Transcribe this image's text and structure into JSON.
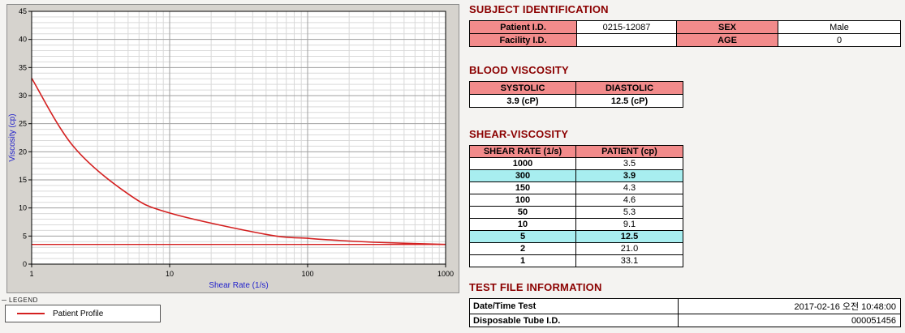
{
  "report": {
    "subject": {
      "title": "SUBJECT IDENTIFICATION",
      "rows": [
        {
          "label1": "Patient I.D.",
          "value1": "0215-12087",
          "label2": "SEX",
          "value2": "Male"
        },
        {
          "label1": "Facility I.D.",
          "value1": "",
          "label2": "AGE",
          "value2": "0"
        }
      ]
    },
    "blood_viscosity": {
      "title": "BLOOD VISCOSITY",
      "headers": [
        "SYSTOLIC",
        "DIASTOLIC"
      ],
      "values": [
        "3.9 (cP)",
        "12.5 (cP)"
      ]
    },
    "shear_viscosity": {
      "title": "SHEAR-VISCOSITY",
      "headers": [
        "SHEAR RATE (1/s)",
        "PATIENT (cp)"
      ],
      "rows": [
        {
          "rate": "1000",
          "value": "3.5",
          "highlight": false
        },
        {
          "rate": "300",
          "value": "3.9",
          "highlight": true
        },
        {
          "rate": "150",
          "value": "4.3",
          "highlight": false
        },
        {
          "rate": "100",
          "value": "4.6",
          "highlight": false
        },
        {
          "rate": "50",
          "value": "5.3",
          "highlight": false
        },
        {
          "rate": "10",
          "value": "9.1",
          "highlight": false
        },
        {
          "rate": "5",
          "value": "12.5",
          "highlight": true
        },
        {
          "rate": "2",
          "value": "21.0",
          "highlight": false
        },
        {
          "rate": "1",
          "value": "33.1",
          "highlight": false
        }
      ]
    },
    "test_file": {
      "title": "TEST FILE INFORMATION",
      "rows": [
        {
          "label": "Date/Time Test",
          "value": "2017-02-16  오전 10:48:00"
        },
        {
          "label": "Disposable Tube I.D.",
          "value": "000051456"
        }
      ]
    }
  },
  "legend": {
    "group_label": "LEGEND",
    "entries": [
      {
        "label": "Patient Profile",
        "color": "#d42020"
      }
    ]
  },
  "chart_data": {
    "type": "line",
    "x_scale": "log",
    "x": [
      1,
      2,
      5,
      10,
      50,
      100,
      150,
      300,
      1000
    ],
    "series": [
      {
        "name": "Patient Profile",
        "values": [
          33.1,
          21.0,
          12.5,
          9.1,
          5.3,
          4.6,
          4.3,
          3.9,
          3.5
        ],
        "color": "#d42020"
      }
    ],
    "baseline": {
      "value": 3.5,
      "color": "#d42020"
    },
    "title": "",
    "xlabel": "Shear Rate (1/s)",
    "ylabel": "Viscosity (cp)",
    "xlim": [
      1,
      1000
    ],
    "ylim": [
      0,
      45
    ],
    "y_major_step": 5,
    "y_minor_step": 1,
    "grid": true,
    "legend_position": "bottom-left"
  },
  "colors": {
    "section_title": "#8b0000",
    "table_header_bg": "#f28b8b",
    "highlight_bg": "#a8eef0",
    "series_red": "#d42020",
    "axis_title_blue": "#2222cc",
    "panel_gray": "#d6d3ce"
  }
}
